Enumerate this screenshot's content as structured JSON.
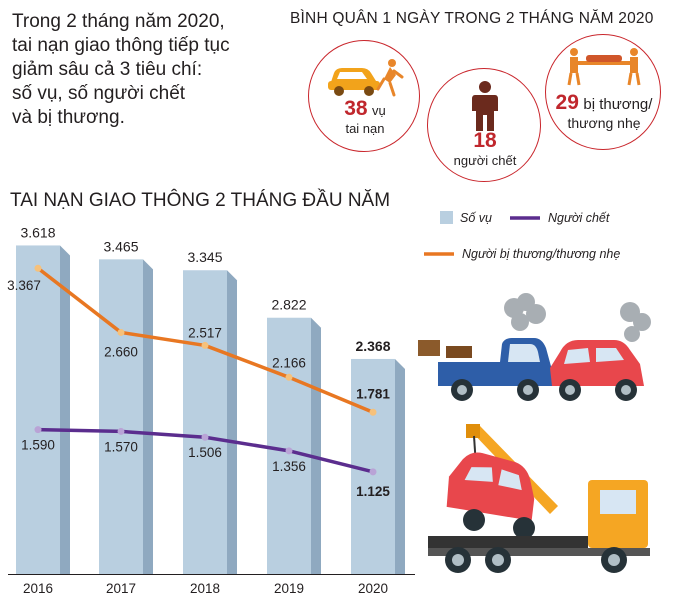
{
  "intro": {
    "lines": [
      "Trong 2 tháng năm 2020,",
      "tai nạn giao thông tiếp tục",
      "giảm sâu cả 3 tiêu chí:",
      "số vụ, số người chết",
      "và bị thương."
    ]
  },
  "average": {
    "title": "BÌNH QUÂN 1 NGÀY TRONG 2 THÁNG NĂM 2020",
    "accidents": {
      "value": "38",
      "unit": "vụ",
      "label": "tai nạn"
    },
    "deaths": {
      "value": "18",
      "label": "người chết"
    },
    "injured": {
      "value": "29",
      "unit": "bị thương/",
      "label": "thương nhẹ"
    }
  },
  "colors": {
    "bar": "#b9cfe0",
    "bar_side": "#8fa9c0",
    "deaths_line": "#5b2d8e",
    "injured_line": "#e87722",
    "accent_red": "#c9262c"
  },
  "icons": [
    "car-crash-icon",
    "person-icon",
    "stretcher-icon",
    "crashed-cars-icon",
    "tow-truck-icon"
  ],
  "chart_data": {
    "type": "bar",
    "title": "TAI NẠN GIAO THÔNG 2 THÁNG ĐẦU NĂM",
    "categories": [
      "2016",
      "2017",
      "2018",
      "2019",
      "2020"
    ],
    "ylim": [
      0,
      3700
    ],
    "legend_position": "top-right",
    "series": [
      {
        "name": "Số vụ",
        "kind": "bar",
        "values": [
          3618,
          3465,
          3345,
          2822,
          2368
        ],
        "labels": [
          "3.618",
          "3.465",
          "3.345",
          "2.822",
          "2.368"
        ]
      },
      {
        "name": "Người chết",
        "kind": "line",
        "values": [
          1590,
          1570,
          1506,
          1356,
          1125
        ],
        "labels": [
          "1.590",
          "1.570",
          "1.506",
          "1.356",
          "1.125"
        ]
      },
      {
        "name": "Người bị thương/thương nhẹ",
        "kind": "line",
        "values": [
          3367,
          2660,
          2517,
          2166,
          1781
        ],
        "labels": [
          "3.367",
          "2.660",
          "2.517",
          "2.166",
          "1.781"
        ]
      }
    ]
  }
}
